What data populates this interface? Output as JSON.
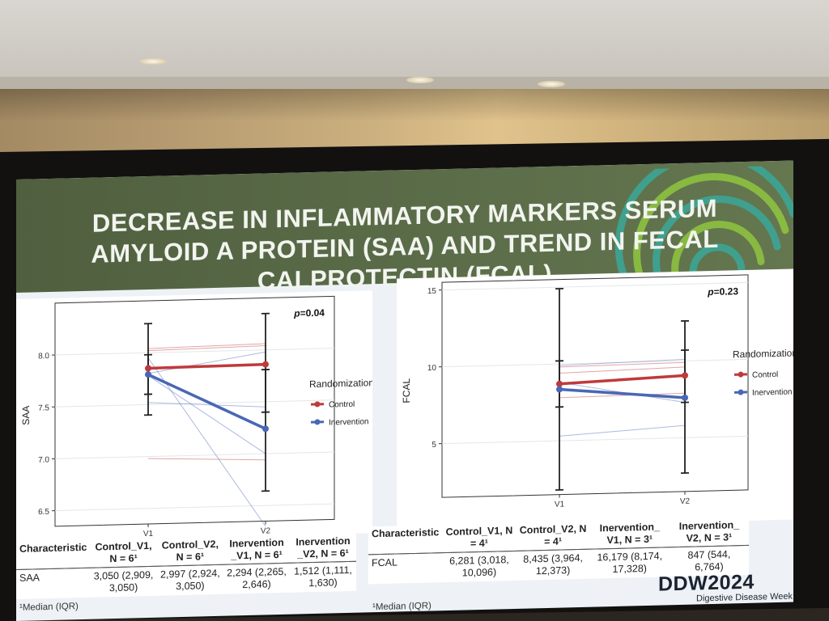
{
  "slide": {
    "title_lines": [
      "DECREASE IN INFLAMMATORY MARKERS SERUM",
      "AMYLOID A PROTEIN (SAA) AND TREND IN FECAL",
      "CALPROTECTIN (FCAL)"
    ],
    "brand": "DDW2024",
    "brand_sub": "Digestive Disease Week"
  },
  "colors": {
    "control": "#c0393b",
    "intervention": "#4a67b5",
    "banner": "#56683f"
  },
  "chart_data": [
    {
      "type": "line",
      "ylabel": "SAA",
      "xlabel": "",
      "categories": [
        "V1",
        "V2"
      ],
      "yticks": [
        "6.5",
        "7.0",
        "7.5",
        "8.0"
      ],
      "ylim": [
        6.35,
        8.5
      ],
      "annotation": "p=0.04",
      "legend_title": "Randomization",
      "series": [
        {
          "name": "Control",
          "values": [
            7.85,
            7.86
          ],
          "err_low": [
            7.4,
            7.4
          ],
          "err_high": [
            8.28,
            8.35
          ]
        },
        {
          "name": "Inervention",
          "values": [
            7.79,
            7.24
          ],
          "err_low": [
            7.6,
            6.64
          ],
          "err_high": [
            7.98,
            7.81
          ]
        }
      ],
      "individual": [
        {
          "group": "Control",
          "values": [
            8.04,
            8.06
          ]
        },
        {
          "group": "Control",
          "values": [
            8.02,
            8.04
          ]
        },
        {
          "group": "Control",
          "values": [
            7.85,
            7.86
          ]
        },
        {
          "group": "Control",
          "values": [
            6.98,
            6.94
          ]
        },
        {
          "group": "Inervention",
          "values": [
            7.95,
            6.3
          ]
        },
        {
          "group": "Inervention",
          "values": [
            7.8,
            7.98
          ]
        },
        {
          "group": "Inervention",
          "values": [
            7.52,
            7.45
          ]
        },
        {
          "group": "Inervention",
          "values": [
            7.78,
            7.0
          ]
        }
      ]
    },
    {
      "type": "line",
      "ylabel": "FCAL",
      "xlabel": "",
      "categories": [
        "V1",
        "V2"
      ],
      "yticks": [
        "5",
        "10",
        "15"
      ],
      "ylim": [
        1.5,
        15.5
      ],
      "annotation": "p=0.23",
      "legend_title": "Randomization",
      "series": [
        {
          "name": "Control",
          "values": [
            8.7,
            9.05
          ],
          "err_low": [
            7.2,
            7.3
          ],
          "err_high": [
            10.2,
            10.7
          ]
        },
        {
          "name": "Inervention",
          "values": [
            8.35,
            7.6
          ],
          "err_low": [
            1.8,
            2.7
          ],
          "err_high": [
            14.9,
            12.6
          ]
        }
      ],
      "individual": [
        {
          "group": "Control",
          "values": [
            9.8,
            9.9
          ]
        },
        {
          "group": "Control",
          "values": [
            9.4,
            9.6
          ]
        },
        {
          "group": "Control",
          "values": [
            7.8,
            7.9
          ]
        },
        {
          "group": "Inervention",
          "values": [
            9.9,
            10.1
          ]
        },
        {
          "group": "Inervention",
          "values": [
            8.8,
            7.3
          ]
        },
        {
          "group": "Inervention",
          "values": [
            5.3,
            5.8
          ]
        }
      ]
    }
  ],
  "table_saa": {
    "headers": [
      "Characteristic",
      "Control_V1, N = 6¹",
      "Control_V2, N = 6¹",
      "Inervention _V1, N = 6¹",
      "Inervention _V2, N = 6¹"
    ],
    "rows": [
      [
        "SAA",
        "3,050 (2,909, 3,050)",
        "2,997 (2,924, 3,050)",
        "2,294 (2,265, 2,646)",
        "1,512 (1,111, 1,630)"
      ]
    ],
    "footnote": "¹Median (IQR)"
  },
  "table_fcal": {
    "headers": [
      "Characteristic",
      "Control_V1, N = 4¹",
      "Control_V2, N = 4¹",
      "Inervention_ V1, N = 3¹",
      "Inervention_ V2, N = 3¹"
    ],
    "rows": [
      [
        "FCAL",
        "6,281 (3,018, 10,096)",
        "8,435 (3,964, 12,373)",
        "16,179 (8,174, 17,328)",
        "847 (544, 6,764)"
      ]
    ],
    "footnote": "¹Median (IQR)"
  }
}
